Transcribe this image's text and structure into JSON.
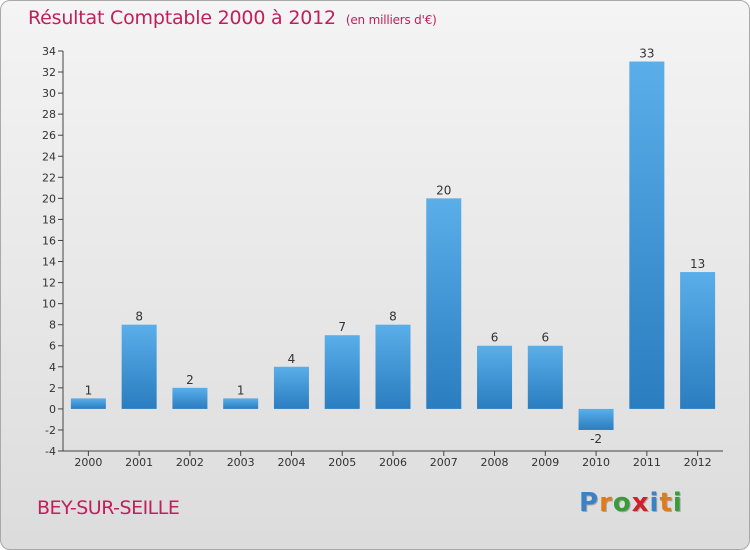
{
  "title": "Résultat Comptable 2000 à 2012",
  "subtitle": "(en milliers d'€)",
  "commune": "BEY-SUR-SEILLE",
  "logo": {
    "text": "Proxiti",
    "letters": [
      {
        "ch": "P",
        "color": "#3b82c4"
      },
      {
        "ch": "r",
        "color": "#e07b1a"
      },
      {
        "ch": "o",
        "color": "#3a9b3a"
      },
      {
        "ch": "x",
        "color": "#d0212a"
      },
      {
        "ch": "i",
        "color": "#3b82c4"
      },
      {
        "ch": "t",
        "color": "#e07b1a"
      },
      {
        "ch": "i",
        "color": "#3a9b3a"
      }
    ]
  },
  "colors": {
    "title": "#c01f5b",
    "bar_light": "#5aaee9",
    "bar_dark": "#2a7dbf"
  },
  "chart_data": {
    "type": "bar",
    "categories": [
      "2000",
      "2001",
      "2002",
      "2003",
      "2004",
      "2005",
      "2006",
      "2007",
      "2008",
      "2009",
      "2010",
      "2011",
      "2012"
    ],
    "values": [
      1,
      8,
      2,
      1,
      4,
      7,
      8,
      20,
      6,
      6,
      -2,
      33,
      13
    ],
    "data_labels": [
      "1",
      "8",
      "2",
      "1",
      "4",
      "7",
      "8",
      "20",
      "6",
      "6",
      "-2",
      "33",
      "13"
    ],
    "y_ticks": [
      34,
      32,
      30,
      28,
      26,
      24,
      22,
      20,
      18,
      16,
      14,
      12,
      10,
      8,
      6,
      4,
      2,
      0,
      -2,
      -4
    ],
    "ylim": [
      -4,
      34
    ],
    "grid": false,
    "legend": "none"
  }
}
